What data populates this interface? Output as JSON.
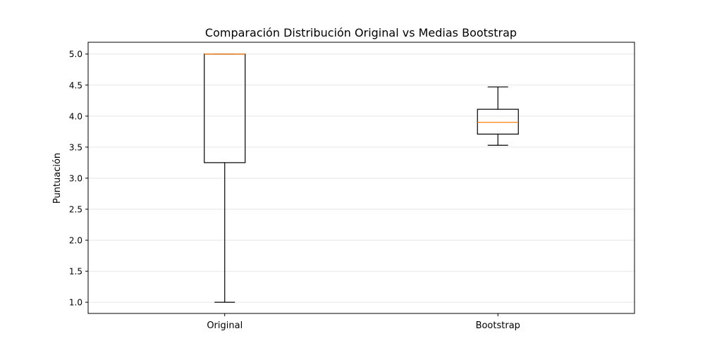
{
  "chart_data": {
    "type": "boxplot",
    "title": "Comparación Distribución Original vs Medias Bootstrap",
    "xlabel": "",
    "ylabel": "Puntuación",
    "ylim": [
      0.82,
      5.19
    ],
    "yticks": [
      1.0,
      1.5,
      2.0,
      2.5,
      3.0,
      3.5,
      4.0,
      4.5,
      5.0
    ],
    "ytick_labels": [
      "1.0",
      "1.5",
      "2.0",
      "2.5",
      "3.0",
      "3.5",
      "4.0",
      "4.5",
      "5.0"
    ],
    "grid": "horizontal",
    "categories": [
      "Original",
      "Bootstrap"
    ],
    "boxes": [
      {
        "category": "Original",
        "whisker_low": 1.0,
        "q1": 3.25,
        "median": 5.0,
        "q3": 5.0,
        "whisker_high": 5.0
      },
      {
        "category": "Bootstrap",
        "whisker_low": 3.53,
        "q1": 3.71,
        "median": 3.9,
        "q3": 4.11,
        "whisker_high": 4.47
      }
    ],
    "colors": {
      "box": "#000000",
      "median": "#ff7f0e",
      "grid": "#e6e6e6"
    }
  }
}
